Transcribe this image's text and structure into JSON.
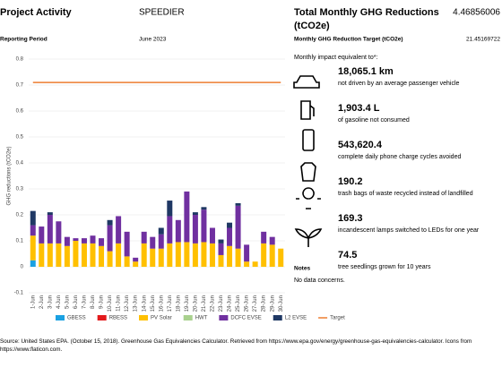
{
  "header": {
    "title": "Project Activity",
    "project": "SPEEDIER",
    "period_label": "Reporting Period",
    "period": "June 2023"
  },
  "summary": {
    "title": "Total Monthly GHG Reductions",
    "title_unit": "(tCO2e)",
    "total": "4.46856006",
    "target_label": "Monthly GHG Reduction Target (tCO2e)",
    "target": "21.45169722",
    "equiv_label": "Monthly impact equivalent to*:",
    "items": [
      {
        "value": "18,065.1 km",
        "text": "not driven by an average passenger vehicle"
      },
      {
        "value": "1,903.4 L",
        "text": "of gasoline not consumed"
      },
      {
        "value": "543,620.4",
        "text": "complete daily phone charge cycles avoided"
      },
      {
        "value": "190.2",
        "text": "trash bags of waste recycled instead of landfilled"
      },
      {
        "value": "169.3",
        "text": "incandescent lamps switched to LEDs for one year"
      },
      {
        "value": "74.5",
        "text": "tree seedlings grown for 10 years"
      }
    ],
    "notes_title": "Notes",
    "notes": "No data concerns."
  },
  "source": "Source: United States EPA. (October 15, 2018). Greenhouse Gas Equivalencies Calculator. Retrieved from https://www.epa.gov/energy/greenhouse-gas-equivalencies-calculator. Icons from https://www.flaticon.com.",
  "chart_data": {
    "type": "bar",
    "stacked": true,
    "y_label": "GHG reductions (tCO2e)",
    "legend": "bottom",
    "categories": [
      "1-Jun",
      "2-Jun",
      "3-Jun",
      "4-Jun",
      "5-Jun",
      "6-Jun",
      "7-Jun",
      "8-Jun",
      "9-Jun",
      "10-Jun",
      "11-Jun",
      "12-Jun",
      "13-Jun",
      "14-Jun",
      "15-Jun",
      "16-Jun",
      "17-Jun",
      "18-Jun",
      "19-Jun",
      "20-Jun",
      "21-Jun",
      "22-Jun",
      "23-Jun",
      "24-Jun",
      "25-Jun",
      "26-Jun",
      "27-Jun",
      "28-Jun",
      "29-Jun",
      "30-Jun"
    ],
    "series": [
      {
        "name": "GBESS",
        "color": "#1ba1e2",
        "values": [
          0.025,
          0,
          0,
          0,
          0,
          0,
          0,
          0,
          0,
          0,
          0,
          0,
          0,
          0,
          0,
          0,
          0,
          0,
          0,
          0,
          0,
          0,
          0,
          0,
          0,
          0,
          0,
          0,
          0,
          0
        ]
      },
      {
        "name": "RBESS",
        "color": "#e31a1c",
        "values": [
          0,
          0,
          0,
          0,
          0,
          0,
          0,
          0,
          0,
          0,
          0,
          0,
          0,
          0,
          0,
          0,
          0,
          0,
          0,
          0,
          0,
          0,
          0,
          0,
          0,
          0,
          0,
          0,
          0,
          0
        ]
      },
      {
        "name": "PV Solar",
        "color": "#ffc000",
        "values": [
          0.095,
          0.09,
          0.09,
          0.09,
          0.08,
          0.1,
          0.09,
          0.09,
          0.08,
          0.06,
          0.09,
          0.04,
          0.02,
          0.09,
          0.07,
          0.07,
          0.09,
          0.095,
          0.095,
          0.09,
          0.095,
          0.09,
          0.045,
          0.08,
          0.07,
          0.02,
          0.02,
          0.09,
          0.085,
          0.07
        ]
      },
      {
        "name": "HWT",
        "color": "#a9d18e",
        "values": [
          0,
          0,
          0,
          0,
          0,
          0,
          0,
          0,
          0,
          0,
          0,
          0,
          0,
          0,
          0,
          0,
          0,
          0,
          0,
          0,
          0,
          0,
          0,
          0,
          0,
          0,
          0,
          0,
          0,
          0
        ]
      },
      {
        "name": "DCFC EVSE",
        "color": "#7030a0",
        "values": [
          0.04,
          0.065,
          0.11,
          0.085,
          0.035,
          0.01,
          0.02,
          0.03,
          0.03,
          0.1,
          0.105,
          0.095,
          0.015,
          0.045,
          0.045,
          0.055,
          0.105,
          0.085,
          0.195,
          0.11,
          0.125,
          0.06,
          0.045,
          0.07,
          0.165,
          0.065,
          0,
          0.045,
          0.03,
          0
        ]
      },
      {
        "name": "L2 EVSE",
        "color": "#1f3864",
        "values": [
          0.055,
          0,
          0.01,
          0,
          0,
          0,
          0,
          0,
          0,
          0.02,
          0,
          0,
          0,
          0,
          0,
          0.025,
          0.06,
          0,
          0,
          0.01,
          0.01,
          0,
          0.015,
          0.02,
          0.01,
          0,
          0,
          0,
          0,
          0
        ]
      },
      {
        "name": "Target",
        "color": "#ed7d31",
        "type": "line",
        "values": [
          0.71,
          0.71,
          0.71,
          0.71,
          0.71,
          0.71,
          0.71,
          0.71,
          0.71,
          0.71,
          0.71,
          0.71,
          0.71,
          0.71,
          0.71,
          0.71,
          0.71,
          0.71,
          0.71,
          0.71,
          0.71,
          0.71,
          0.71,
          0.71,
          0.71,
          0.71,
          0.71,
          0.71,
          0.71,
          0.71
        ]
      }
    ],
    "ylim": [
      -0.1,
      0.8
    ],
    "yticks": [
      -0.1,
      0,
      0.1,
      0.2,
      0.3,
      0.4,
      0.5,
      0.6,
      0.7,
      0.8
    ]
  }
}
